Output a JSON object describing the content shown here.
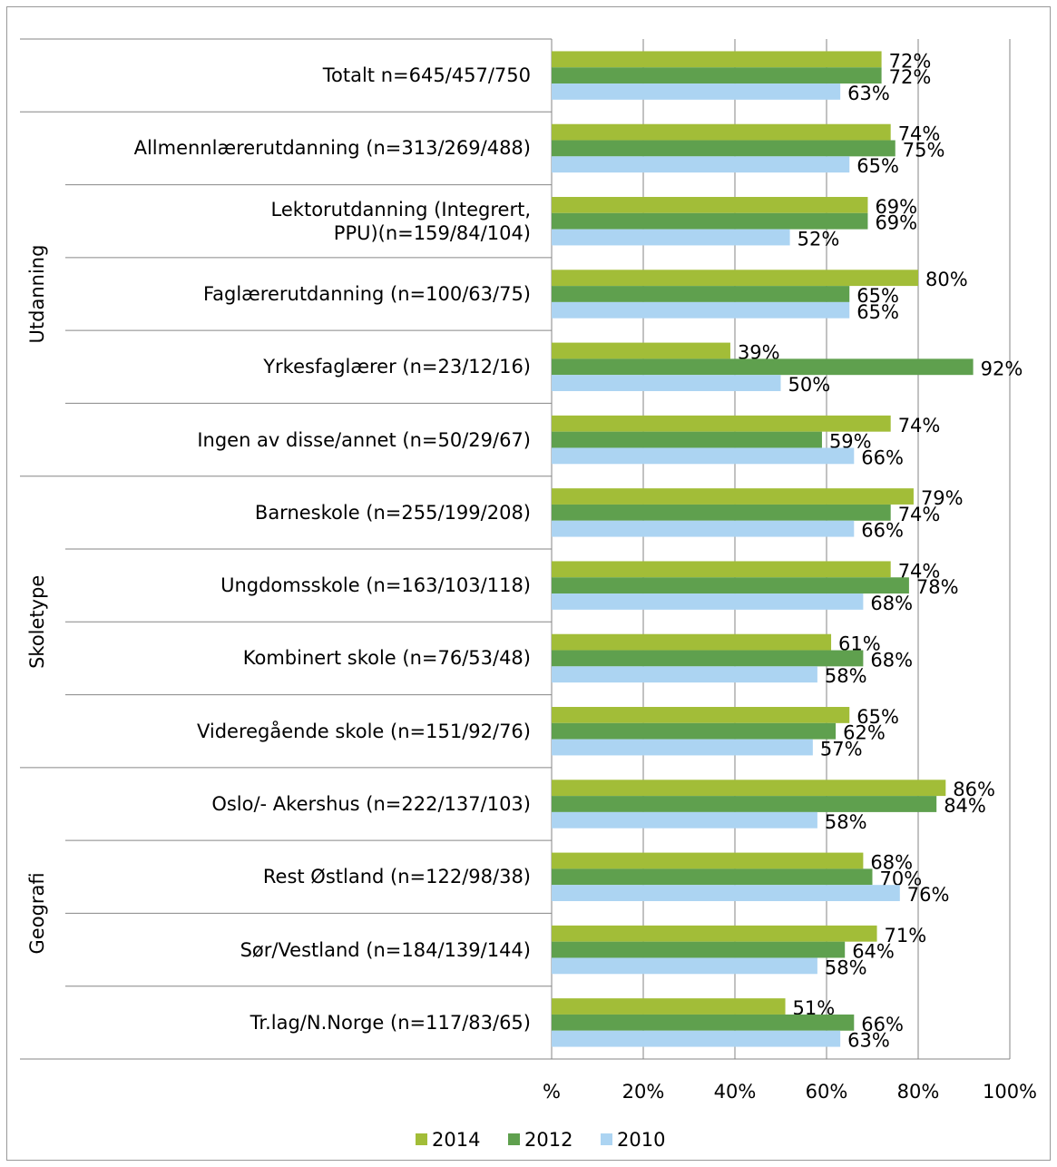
{
  "chart_data": {
    "type": "bar",
    "orientation": "horizontal",
    "categories": [
      "Totalt n=645/457/750",
      "Allmennlærerutdanning (n=313/269/488)",
      "Lektorutdanning (Integrert,\nPPU)(n=159/84/104)",
      "Faglærerutdanning (n=100/63/75)",
      "Yrkesfaglærer (n=23/12/16)",
      "Ingen av disse/annet (n=50/29/67)",
      "Barneskole (n=255/199/208)",
      "Ungdomsskole (n=163/103/118)",
      "Kombinert skole (n=76/53/48)",
      "Videregående skole (n=151/92/76)",
      "Oslo/- Akershus (n=222/137/103)",
      "Rest Østland (n=122/98/38)",
      "Sør/Vestland (n=184/139/144)",
      "Tr.lag/N.Norge (n=117/83/65)"
    ],
    "category_groups": [
      null,
      "Utdanning",
      "Utdanning",
      "Utdanning",
      "Utdanning",
      "Utdanning",
      "Skoletype",
      "Skoletype",
      "Skoletype",
      "Skoletype",
      "Geografi",
      "Geografi",
      "Geografi",
      "Geografi"
    ],
    "series": [
      {
        "name": "2014",
        "color": "#a2bd38",
        "values": [
          72,
          74,
          69,
          80,
          39,
          74,
          79,
          74,
          61,
          65,
          86,
          68,
          71,
          51
        ],
        "value_labels": [
          "72%",
          "74%",
          "69%",
          "80%",
          "39%",
          "74%",
          "79%",
          "74%",
          "61%",
          "65%",
          "86%",
          "68%",
          "71%",
          "51%"
        ]
      },
      {
        "name": "2012",
        "color": "#5fa04e",
        "values": [
          72,
          75,
          69,
          65,
          92,
          59,
          74,
          78,
          68,
          62,
          84,
          70,
          64,
          66
        ],
        "value_labels": [
          "72%",
          "75%",
          "69%",
          "65%",
          "92%",
          "59%",
          "74%",
          "78%",
          "68%",
          "62%",
          "84%",
          "70%",
          "64%",
          "66%"
        ]
      },
      {
        "name": "2010",
        "color": "#acd4f2",
        "values": [
          63,
          65,
          52,
          65,
          50,
          66,
          66,
          68,
          58,
          57,
          58,
          76,
          58,
          63
        ],
        "value_labels": [
          "63%",
          "65%",
          "52%",
          "65%",
          "50%",
          "66%",
          "66%",
          "68%",
          "58%",
          "57%",
          "58%",
          "76%",
          "58%",
          "63%"
        ]
      }
    ],
    "xlim": [
      0,
      100
    ],
    "xticks": [
      {
        "value": 0,
        "label": "%"
      },
      {
        "value": 20,
        "label": "20%"
      },
      {
        "value": 40,
        "label": "40%"
      },
      {
        "value": 60,
        "label": "60%"
      },
      {
        "value": 80,
        "label": "80%"
      },
      {
        "value": 100,
        "label": "100%"
      }
    ],
    "grid": true,
    "legend": "bottom"
  }
}
